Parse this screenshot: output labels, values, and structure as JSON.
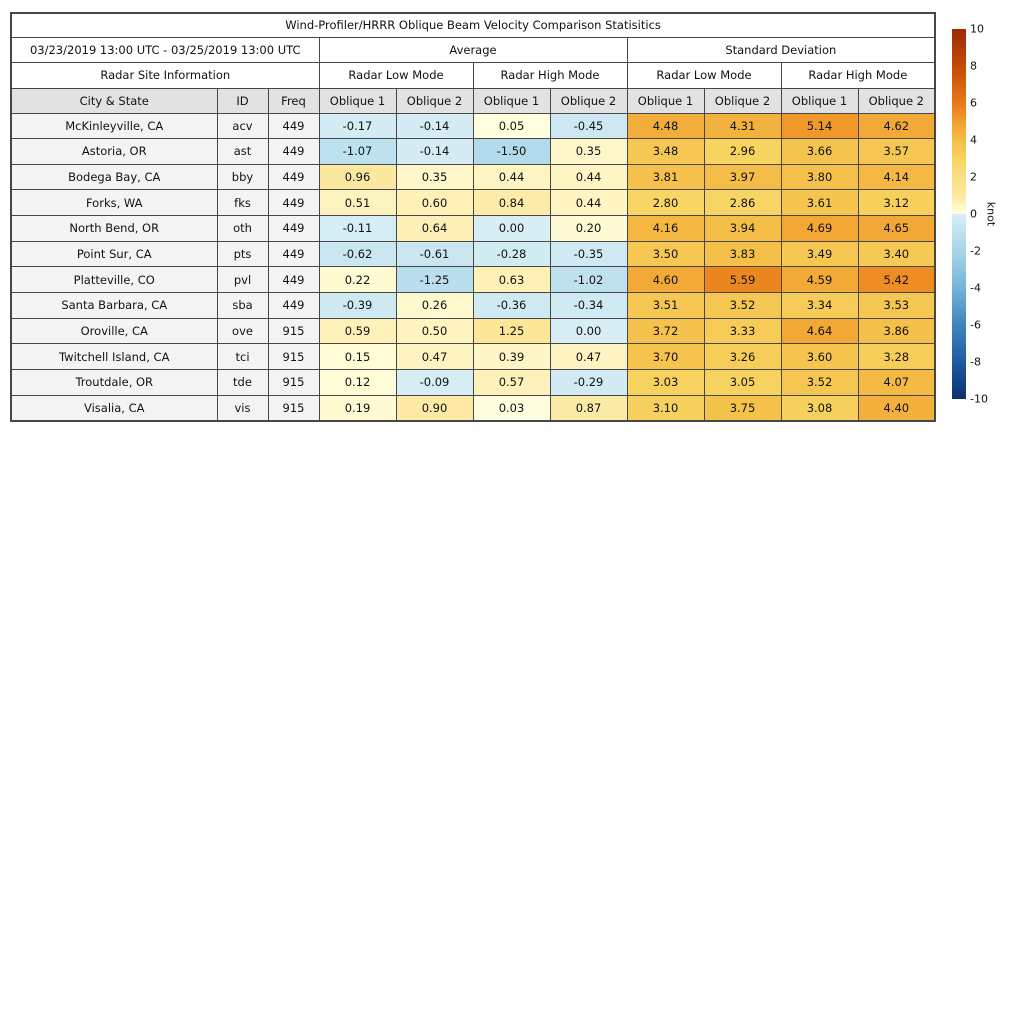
{
  "chart_data": {
    "type": "table",
    "title": "Wind-Profiler/HRRR Oblique Beam Velocity Comparison Statisitics",
    "date_range": "03/23/2019 13:00 UTC - 03/25/2019 13:00 UTC",
    "groups": {
      "average": "Average",
      "std": "Standard Deviation"
    },
    "site_info_label": "Radar Site Information",
    "mode_labels": [
      "Radar Low Mode",
      "Radar High Mode",
      "Radar Low Mode",
      "Radar High Mode"
    ],
    "col_headers": {
      "city": "City & State",
      "id": "ID",
      "freq": "Freq"
    },
    "oblique_labels": [
      "Oblique 1",
      "Oblique 2",
      "Oblique 1",
      "Oblique 2",
      "Oblique 1",
      "Oblique 2",
      "Oblique 1",
      "Oblique 2"
    ],
    "rows": [
      {
        "city": "McKinleyville, CA",
        "id": "acv",
        "freq": "449",
        "values": [
          -0.17,
          -0.14,
          0.05,
          -0.45,
          4.48,
          4.31,
          5.14,
          4.62
        ]
      },
      {
        "city": "Astoria, OR",
        "id": "ast",
        "freq": "449",
        "values": [
          -1.07,
          -0.14,
          -1.5,
          0.35,
          3.48,
          2.96,
          3.66,
          3.57
        ]
      },
      {
        "city": "Bodega Bay, CA",
        "id": "bby",
        "freq": "449",
        "values": [
          0.96,
          0.35,
          0.44,
          0.44,
          3.81,
          3.97,
          3.8,
          4.14
        ]
      },
      {
        "city": "Forks, WA",
        "id": "fks",
        "freq": "449",
        "values": [
          0.51,
          0.6,
          0.84,
          0.44,
          2.8,
          2.86,
          3.61,
          3.12
        ]
      },
      {
        "city": "North Bend, OR",
        "id": "oth",
        "freq": "449",
        "values": [
          -0.11,
          0.64,
          0.0,
          0.2,
          4.16,
          3.94,
          4.69,
          4.65
        ]
      },
      {
        "city": "Point Sur, CA",
        "id": "pts",
        "freq": "449",
        "values": [
          -0.62,
          -0.61,
          -0.28,
          -0.35,
          3.5,
          3.83,
          3.49,
          3.4
        ]
      },
      {
        "city": "Platteville, CO",
        "id": "pvl",
        "freq": "449",
        "values": [
          0.22,
          -1.25,
          0.63,
          -1.02,
          4.6,
          5.59,
          4.59,
          5.42
        ]
      },
      {
        "city": "Santa Barbara, CA",
        "id": "sba",
        "freq": "449",
        "values": [
          -0.39,
          0.26,
          -0.36,
          -0.34,
          3.51,
          3.52,
          3.34,
          3.53
        ]
      },
      {
        "city": "Oroville, CA",
        "id": "ove",
        "freq": "915",
        "values": [
          0.59,
          0.5,
          1.25,
          0.0,
          3.72,
          3.33,
          4.64,
          3.86
        ]
      },
      {
        "city": "Twitchell Island, CA",
        "id": "tci",
        "freq": "915",
        "values": [
          0.15,
          0.47,
          0.39,
          0.47,
          3.7,
          3.26,
          3.6,
          3.28
        ]
      },
      {
        "city": "Troutdale, OR",
        "id": "tde",
        "freq": "915",
        "values": [
          0.12,
          -0.09,
          0.57,
          -0.29,
          3.03,
          3.05,
          3.52,
          4.07
        ]
      },
      {
        "city": "Visalia, CA",
        "id": "vis",
        "freq": "915",
        "values": [
          0.19,
          0.9,
          0.03,
          0.87,
          3.1,
          3.75,
          3.08,
          4.4
        ]
      }
    ],
    "value_range": [
      -10,
      10
    ],
    "colorbar": {
      "label": "knot",
      "ticks": [
        10,
        8,
        6,
        4,
        2,
        0,
        -2,
        -4,
        -6,
        -8,
        -10
      ],
      "warm_stops": [
        [
          0,
          "#ffffe0"
        ],
        [
          1,
          "#fce89e"
        ],
        [
          2,
          "#fae082"
        ],
        [
          3,
          "#f7d35f"
        ],
        [
          4,
          "#f4bc46"
        ],
        [
          5,
          "#f19d2d"
        ],
        [
          6,
          "#e97816"
        ],
        [
          8,
          "#c44a03"
        ],
        [
          10,
          "#9b2a06"
        ]
      ],
      "cool_stops": [
        [
          0,
          "#d8eef5"
        ],
        [
          2,
          "#a6d5e8"
        ],
        [
          4,
          "#72b5d7"
        ],
        [
          6,
          "#3c86bd"
        ],
        [
          8,
          "#1c5ca3"
        ],
        [
          10,
          "#0d2f6b"
        ]
      ]
    }
  }
}
